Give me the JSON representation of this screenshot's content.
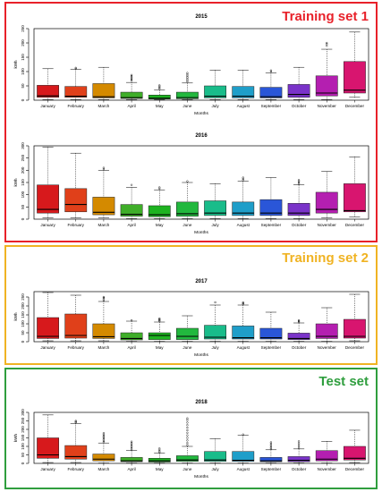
{
  "sets": [
    {
      "label": "Training set 1",
      "color": "#e8212a"
    },
    {
      "label": "Training set 2",
      "color": "#f0b323"
    },
    {
      "label": "Test set",
      "color": "#2f9e3e"
    }
  ],
  "month_colors": [
    "#d7191c",
    "#e0401a",
    "#d48a00",
    "#3fae29",
    "#1db320",
    "#22b83e",
    "#19bc8a",
    "#1f9ec9",
    "#2a56d8",
    "#7a33c9",
    "#b41fb0",
    "#d8156f"
  ],
  "chart_data": [
    {
      "type": "boxplot",
      "title": "2015",
      "xlabel": "Months",
      "ylabel": "kWh",
      "ylim": [
        0,
        250
      ],
      "yticks": [
        0,
        50,
        100,
        150,
        200,
        250
      ],
      "categories": [
        "January",
        "February",
        "March",
        "April",
        "May",
        "June",
        "July",
        "August",
        "September",
        "October",
        "November",
        "December"
      ],
      "boxes": [
        {
          "min": 2,
          "q1": 10,
          "median": 15,
          "q3": 52,
          "max": 110,
          "outliers": []
        },
        {
          "min": 2,
          "q1": 10,
          "median": 14,
          "q3": 48,
          "max": 108,
          "outliers": [
            110,
            113
          ]
        },
        {
          "min": 2,
          "q1": 8,
          "median": 12,
          "q3": 58,
          "max": 115,
          "outliers": []
        },
        {
          "min": 2,
          "q1": 6,
          "median": 9,
          "q3": 28,
          "max": 62,
          "outliers": [
            68,
            72,
            76,
            80,
            84,
            88
          ]
        },
        {
          "min": 2,
          "q1": 4,
          "median": 7,
          "q3": 18,
          "max": 35,
          "outliers": [
            40,
            44,
            48,
            52
          ]
        },
        {
          "min": 2,
          "q1": 5,
          "median": 9,
          "q3": 28,
          "max": 60,
          "outliers": [
            65,
            70,
            75,
            80,
            85,
            90,
            95
          ]
        },
        {
          "min": 2,
          "q1": 8,
          "median": 14,
          "q3": 50,
          "max": 105,
          "outliers": []
        },
        {
          "min": 2,
          "q1": 8,
          "median": 14,
          "q3": 48,
          "max": 105,
          "outliers": []
        },
        {
          "min": 2,
          "q1": 8,
          "median": 12,
          "q3": 45,
          "max": 95,
          "outliers": [
            100,
            104
          ]
        },
        {
          "min": 2,
          "q1": 10,
          "median": 20,
          "q3": 55,
          "max": 115,
          "outliers": []
        },
        {
          "min": 2,
          "q1": 15,
          "median": 25,
          "q3": 85,
          "max": 178,
          "outliers": [
            190,
            196,
            200
          ]
        },
        {
          "min": 10,
          "q1": 25,
          "median": 35,
          "q3": 135,
          "max": 238,
          "outliers": []
        }
      ]
    },
    {
      "type": "boxplot",
      "title": "2016",
      "xlabel": "Months",
      "ylabel": "kWh",
      "ylim": [
        0,
        300
      ],
      "yticks": [
        0,
        50,
        100,
        150,
        200,
        250,
        300
      ],
      "categories": [
        "January",
        "February",
        "March",
        "April",
        "May",
        "June",
        "July",
        "August",
        "September",
        "October",
        "November",
        "December"
      ],
      "boxes": [
        {
          "min": 5,
          "q1": 25,
          "median": 40,
          "q3": 140,
          "max": 295,
          "outliers": []
        },
        {
          "min": 5,
          "q1": 30,
          "median": 60,
          "q3": 125,
          "max": 270,
          "outliers": []
        },
        {
          "min": 5,
          "q1": 18,
          "median": 28,
          "q3": 90,
          "max": 200,
          "outliers": [
            205,
            210
          ]
        },
        {
          "min": 2,
          "q1": 12,
          "median": 20,
          "q3": 60,
          "max": 130,
          "outliers": [
            140
          ]
        },
        {
          "min": 2,
          "q1": 10,
          "median": 18,
          "q3": 55,
          "max": 120,
          "outliers": [
            125,
            130
          ]
        },
        {
          "min": 2,
          "q1": 12,
          "median": 22,
          "q3": 70,
          "max": 150,
          "outliers": [
            155
          ]
        },
        {
          "min": 2,
          "q1": 15,
          "median": 25,
          "q3": 75,
          "max": 145,
          "outliers": []
        },
        {
          "min": 2,
          "q1": 15,
          "median": 25,
          "q3": 70,
          "max": 155,
          "outliers": [
            160,
            165,
            170
          ]
        },
        {
          "min": 2,
          "q1": 15,
          "median": 25,
          "q3": 80,
          "max": 170,
          "outliers": []
        },
        {
          "min": 2,
          "q1": 15,
          "median": 25,
          "q3": 65,
          "max": 140,
          "outliers": [
            145,
            150,
            155,
            160
          ]
        },
        {
          "min": 5,
          "q1": 25,
          "median": 40,
          "q3": 110,
          "max": 195,
          "outliers": []
        },
        {
          "min": 10,
          "q1": 30,
          "median": 35,
          "q3": 145,
          "max": 255,
          "outliers": []
        }
      ]
    },
    {
      "type": "boxplot",
      "title": "2017",
      "xlabel": "Months",
      "ylabel": "kWh",
      "ylim": [
        0,
        280
      ],
      "yticks": [
        0,
        50,
        100,
        150,
        200,
        250
      ],
      "categories": [
        "January",
        "February",
        "March",
        "April",
        "May",
        "June",
        "July",
        "August",
        "September",
        "October",
        "November",
        "December"
      ],
      "boxes": [
        {
          "min": 5,
          "q1": 18,
          "median": 30,
          "q3": 135,
          "max": 275,
          "outliers": []
        },
        {
          "min": 5,
          "q1": 20,
          "median": 35,
          "q3": 155,
          "max": 260,
          "outliers": []
        },
        {
          "min": 5,
          "q1": 18,
          "median": 28,
          "q3": 100,
          "max": 225,
          "outliers": [
            230,
            238,
            245,
            250
          ]
        },
        {
          "min": 2,
          "q1": 10,
          "median": 18,
          "q3": 50,
          "max": 115,
          "outliers": [
            120
          ]
        },
        {
          "min": 2,
          "q1": 12,
          "median": 35,
          "q3": 50,
          "max": 110,
          "outliers": [
            115,
            120,
            125,
            130
          ]
        },
        {
          "min": 2,
          "q1": 12,
          "median": 30,
          "q3": 75,
          "max": 145,
          "outliers": []
        },
        {
          "min": 2,
          "q1": 15,
          "median": 25,
          "q3": 92,
          "max": 205,
          "outliers": [
            220
          ]
        },
        {
          "min": 2,
          "q1": 15,
          "median": 22,
          "q3": 88,
          "max": 205,
          "outliers": [
            210,
            215,
            220
          ]
        },
        {
          "min": 2,
          "q1": 15,
          "median": 22,
          "q3": 75,
          "max": 165,
          "outliers": []
        },
        {
          "min": 2,
          "q1": 12,
          "median": 18,
          "q3": 48,
          "max": 105,
          "outliers": [
            110,
            115,
            120
          ]
        },
        {
          "min": 2,
          "q1": 18,
          "median": 30,
          "q3": 100,
          "max": 190,
          "outliers": []
        },
        {
          "min": 5,
          "q1": 20,
          "median": 30,
          "q3": 125,
          "max": 265,
          "outliers": []
        }
      ]
    },
    {
      "type": "boxplot",
      "title": "2018",
      "xlabel": "Months",
      "ylabel": "kWh",
      "ylim": [
        0,
        300
      ],
      "yticks": [
        0,
        50,
        100,
        150,
        200,
        250,
        300
      ],
      "categories": [
        "January",
        "February",
        "March",
        "April",
        "May",
        "June",
        "July",
        "August",
        "September",
        "October",
        "November",
        "December"
      ],
      "boxes": [
        {
          "min": 5,
          "q1": 30,
          "median": 50,
          "q3": 150,
          "max": 285,
          "outliers": []
        },
        {
          "min": 5,
          "q1": 25,
          "median": 40,
          "q3": 105,
          "max": 235,
          "outliers": [
            240,
            245,
            250
          ]
        },
        {
          "min": 2,
          "q1": 15,
          "median": 25,
          "q3": 55,
          "max": 120,
          "outliers": [
            125,
            132,
            140,
            148,
            155,
            162,
            170,
            178
          ]
        },
        {
          "min": 2,
          "q1": 10,
          "median": 15,
          "q3": 35,
          "max": 75,
          "outliers": [
            80,
            88,
            96,
            104,
            112,
            120,
            128
          ]
        },
        {
          "min": 2,
          "q1": 8,
          "median": 15,
          "q3": 30,
          "max": 60,
          "outliers": [
            65,
            72,
            80,
            88
          ]
        },
        {
          "min": 2,
          "q1": 12,
          "median": 20,
          "q3": 45,
          "max": 100,
          "outliers": [
            108,
            120,
            135,
            150,
            165,
            180,
            195,
            210,
            225,
            240,
            255,
            265
          ]
        },
        {
          "min": 2,
          "q1": 12,
          "median": 20,
          "q3": 70,
          "max": 145,
          "outliers": []
        },
        {
          "min": 2,
          "q1": 12,
          "median": 18,
          "q3": 70,
          "max": 165,
          "outliers": [
            170
          ]
        },
        {
          "min": 2,
          "q1": 10,
          "median": 15,
          "q3": 35,
          "max": 80,
          "outliers": [
            85,
            92,
            100,
            108,
            116,
            124
          ]
        },
        {
          "min": 2,
          "q1": 10,
          "median": 18,
          "q3": 40,
          "max": 85,
          "outliers": [
            90,
            100,
            110,
            120,
            130
          ]
        },
        {
          "min": 2,
          "q1": 15,
          "median": 25,
          "q3": 75,
          "max": 130,
          "outliers": []
        },
        {
          "min": 5,
          "q1": 20,
          "median": 30,
          "q3": 100,
          "max": 195,
          "outliers": []
        }
      ]
    }
  ]
}
